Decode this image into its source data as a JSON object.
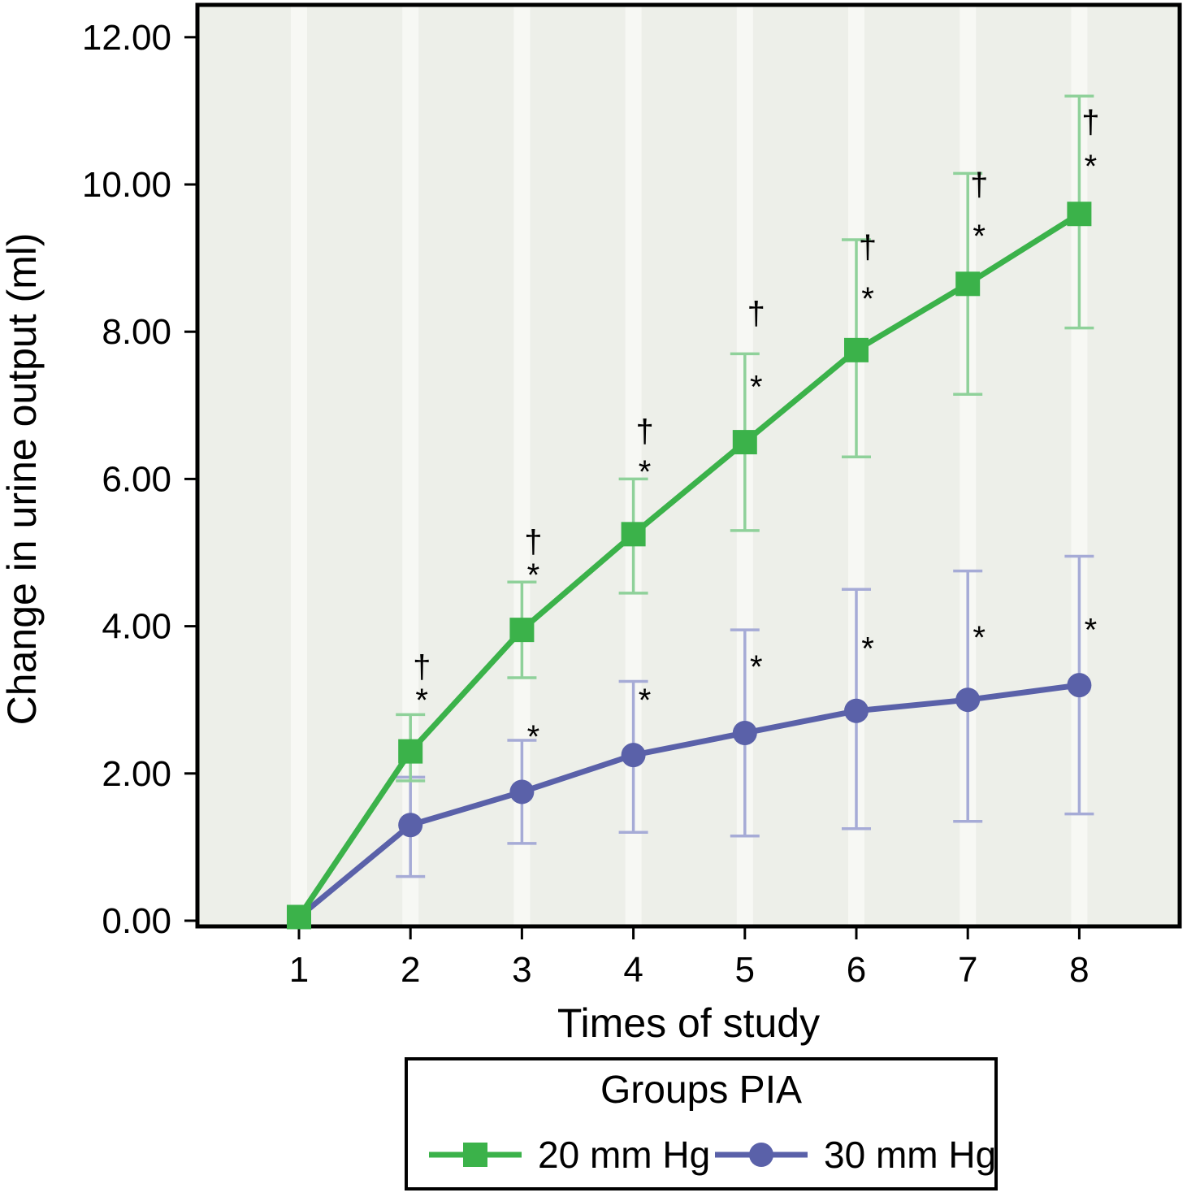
{
  "chart_data": {
    "type": "line",
    "title": "",
    "xlabel": "Times of study",
    "ylabel": "Change in urine output (ml)",
    "x": [
      1,
      2,
      3,
      4,
      5,
      6,
      7,
      8
    ],
    "x_tick_labels": [
      "1",
      "2",
      "3",
      "4",
      "5",
      "6",
      "7",
      "8"
    ],
    "y_ticks": [
      0,
      2,
      4,
      6,
      8,
      10,
      12
    ],
    "y_tick_labels": [
      "0.00",
      "2.00",
      "4.00",
      "6.00",
      "8.00",
      "10.00",
      "12.00"
    ],
    "ylim": [
      -0.1,
      12.45
    ],
    "grid": "faint vertical bands at x ticks",
    "plot_bg": "#edefe9",
    "band_color": "#f7f8f4",
    "border_color": "#000000",
    "annotation_color": "#222222",
    "legend": {
      "title": "Groups PIA",
      "position": "bottom"
    },
    "series": [
      {
        "name": "20 mm Hg",
        "marker": "square",
        "color": "#3bb24a",
        "error_color": "#8fd19a",
        "values": [
          0.05,
          2.3,
          3.95,
          5.25,
          6.5,
          7.75,
          8.65,
          9.6
        ],
        "error_low": [
          null,
          1.9,
          3.3,
          4.45,
          5.3,
          6.3,
          7.15,
          8.05
        ],
        "error_high": [
          null,
          2.8,
          4.6,
          6.0,
          7.7,
          9.25,
          10.15,
          11.2
        ],
        "annotations": [
          [],
          [
            [
              "†",
              3.3
            ],
            [
              "*",
              2.85
            ]
          ],
          [
            [
              "†",
              5.0
            ],
            [
              "*",
              4.55
            ]
          ],
          [
            [
              "†",
              6.5
            ],
            [
              "*",
              5.95
            ]
          ],
          [
            [
              "†",
              8.1
            ],
            [
              "*",
              7.1
            ]
          ],
          [
            [
              "†",
              9.0
            ],
            [
              "*",
              8.3
            ]
          ],
          [
            [
              "†",
              9.85
            ],
            [
              "*",
              9.15
            ]
          ],
          [
            [
              "†",
              10.7
            ],
            [
              "*",
              10.1
            ]
          ]
        ]
      },
      {
        "name": "30 mm Hg",
        "marker": "circle",
        "color": "#5a61a9",
        "error_color": "#a6abd6",
        "values": [
          0.05,
          1.3,
          1.75,
          2.25,
          2.55,
          2.85,
          3.0,
          3.2
        ],
        "error_low": [
          null,
          0.6,
          1.05,
          1.2,
          1.15,
          1.25,
          1.35,
          1.45
        ],
        "error_high": [
          null,
          1.95,
          2.45,
          3.25,
          3.95,
          4.5,
          4.75,
          4.95
        ],
        "annotations": [
          [],
          [],
          [
            [
              "*",
              2.35
            ]
          ],
          [
            [
              "*",
              2.85
            ]
          ],
          [
            [
              "*",
              3.3
            ]
          ],
          [
            [
              "*",
              3.55
            ]
          ],
          [
            [
              "*",
              3.7
            ]
          ],
          [
            [
              "*",
              3.8
            ]
          ]
        ]
      }
    ]
  }
}
